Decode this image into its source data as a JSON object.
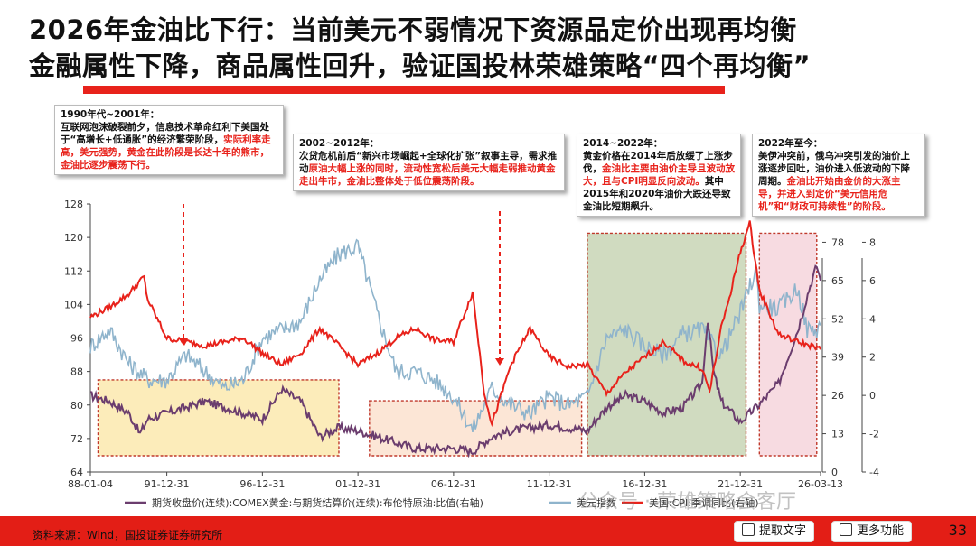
{
  "title_line1": "2026年金油比下行：当前美元不弱情况下资源品定价出现再均衡",
  "title_line2": "金融属性下降，商品属性回升，验证国投林荣雄策略“四个再均衡”",
  "notes": [
    {
      "head": "1990年代~2001年：",
      "segments": [
        {
          "t": "互联网泡沫破裂前夕，信息技术革命红利下美国处于“高增长+低通胀”的经济繁荣阶段，",
          "red": false
        },
        {
          "t": "实际利率走高，美元强势，黄金在此阶段是长达十年的熊市，金油比逐步震荡下行。",
          "red": true
        }
      ]
    },
    {
      "head": "2002~2012年：",
      "segments": [
        {
          "t": "次贷危机前后“新兴市场崛起+全球化扩张”叙事主导，需求推动",
          "red": false
        },
        {
          "t": "原油大幅上涨的同时，流动性宽松后美元大幅走弱推动黄金走出牛市，金油比整体处于低位震荡阶段。",
          "red": true
        }
      ]
    },
    {
      "head": "2014~2022年：",
      "segments": [
        {
          "t": "黄金价格在2014年后放缓了上涨步伐，",
          "red": false
        },
        {
          "t": "金油比主要由油价主导且波动放大，且与CPI明显反向波动。",
          "red": true
        },
        {
          "t": "其中2015年和2020年油价大跌还导致金油比短期飙升。",
          "red": false
        }
      ]
    },
    {
      "head": "2022年至今：",
      "segments": [
        {
          "t": "美伊冲突前，俄乌冲突引发的油价上涨逐步回吐，油价进入低波动的下降周期。",
          "red": false
        },
        {
          "t": "金油比开始由金价的大涨主导，并进入到定价“美元信用危机”和“财政可持续性”的阶段。",
          "red": true
        }
      ]
    }
  ],
  "chart_data": {
    "type": "line",
    "x_ticks": [
      "88-01-04",
      "91-12-31",
      "96-12-31",
      "01-12-31",
      "06-12-31",
      "11-12-31",
      "16-12-31",
      "21-12-31",
      "26-03-13"
    ],
    "left_axis": {
      "range": [
        64,
        128
      ],
      "ticks": [
        64,
        72,
        80,
        88,
        96,
        104,
        112,
        120,
        128
      ]
    },
    "right_axis_1": {
      "range": [
        0,
        91
      ],
      "ticks": [
        0,
        13,
        26,
        39,
        52,
        65,
        78
      ]
    },
    "right_axis_2": {
      "range": [
        -4,
        10
      ],
      "ticks": [
        -4,
        -2,
        0,
        2,
        4,
        6,
        8
      ]
    },
    "series": [
      {
        "name": "期货收盘价(连续):COMEX黄金:与期货结算价(连续):布伦特原油:比值(右轴)",
        "color": "#6b3d6e",
        "axis": "right_axis_1",
        "points": [
          [
            1988.0,
            26
          ],
          [
            1989.0,
            24
          ],
          [
            1990.0,
            20
          ],
          [
            1990.6,
            13
          ],
          [
            1991.0,
            18
          ],
          [
            1992.0,
            20
          ],
          [
            1993.0,
            22
          ],
          [
            1994.0,
            24
          ],
          [
            1995.0,
            22
          ],
          [
            1996.0,
            20
          ],
          [
            1997.0,
            18
          ],
          [
            1998.0,
            28
          ],
          [
            1999.0,
            24
          ],
          [
            2000.0,
            12
          ],
          [
            2001.0,
            15
          ],
          [
            2002.0,
            14
          ],
          [
            2003.0,
            12
          ],
          [
            2004.0,
            10
          ],
          [
            2005.0,
            8
          ],
          [
            2006.0,
            8
          ],
          [
            2007.0,
            8
          ],
          [
            2008.0,
            7
          ],
          [
            2009.0,
            12
          ],
          [
            2010.0,
            14
          ],
          [
            2011.0,
            15
          ],
          [
            2012.0,
            16
          ],
          [
            2013.0,
            15
          ],
          [
            2014.0,
            14
          ],
          [
            2015.0,
            22
          ],
          [
            2016.0,
            26
          ],
          [
            2017.0,
            24
          ],
          [
            2018.0,
            20
          ],
          [
            2019.0,
            22
          ],
          [
            2020.0,
            30
          ],
          [
            2020.3,
            52
          ],
          [
            2020.6,
            34
          ],
          [
            2021.0,
            24
          ],
          [
            2022.0,
            17
          ],
          [
            2023.0,
            23
          ],
          [
            2024.0,
            30
          ],
          [
            2025.0,
            48
          ],
          [
            2025.6,
            62
          ],
          [
            2026.0,
            70
          ],
          [
            2026.2,
            65
          ]
        ]
      },
      {
        "name": "美元指数",
        "color": "#8fb4cc",
        "axis": "left_axis",
        "points": [
          [
            1988.0,
            94
          ],
          [
            1989.0,
            98
          ],
          [
            1990.0,
            90
          ],
          [
            1991.0,
            86
          ],
          [
            1992.0,
            86
          ],
          [
            1993.0,
            92
          ],
          [
            1994.0,
            88
          ],
          [
            1995.0,
            84
          ],
          [
            1996.0,
            86
          ],
          [
            1997.0,
            96
          ],
          [
            1998.0,
            98
          ],
          [
            1999.0,
            100
          ],
          [
            2000.0,
            110
          ],
          [
            2001.0,
            116
          ],
          [
            2002.0,
            118
          ],
          [
            2003.0,
            102
          ],
          [
            2004.0,
            88
          ],
          [
            2005.0,
            88
          ],
          [
            2006.0,
            86
          ],
          [
            2007.0,
            82
          ],
          [
            2008.0,
            74
          ],
          [
            2009.0,
            84
          ],
          [
            2010.0,
            80
          ],
          [
            2011.0,
            78
          ],
          [
            2012.0,
            82
          ],
          [
            2013.0,
            80
          ],
          [
            2014.0,
            82
          ],
          [
            2015.0,
            96
          ],
          [
            2016.0,
            98
          ],
          [
            2017.0,
            94
          ],
          [
            2018.0,
            92
          ],
          [
            2019.0,
            97
          ],
          [
            2020.0,
            98
          ],
          [
            2021.0,
            92
          ],
          [
            2022.0,
            102
          ],
          [
            2022.8,
            112
          ],
          [
            2023.0,
            104
          ],
          [
            2024.0,
            103
          ],
          [
            2025.0,
            108
          ],
          [
            2025.5,
            98
          ],
          [
            2026.0,
            98
          ],
          [
            2026.2,
            99
          ]
        ]
      },
      {
        "name": "美国:CPI:季调同比(右轴)",
        "color": "#e8221b",
        "axis": "right_axis_2",
        "points": [
          [
            1988.0,
            4.1
          ],
          [
            1989.0,
            4.6
          ],
          [
            1990.0,
            5.3
          ],
          [
            1990.8,
            6.2
          ],
          [
            1991.0,
            5.0
          ],
          [
            1992.0,
            3.0
          ],
          [
            1993.0,
            2.8
          ],
          [
            1994.0,
            2.6
          ],
          [
            1995.0,
            2.8
          ],
          [
            1996.0,
            3.0
          ],
          [
            1997.0,
            2.2
          ],
          [
            1998.0,
            1.6
          ],
          [
            1999.0,
            2.2
          ],
          [
            2000.0,
            3.5
          ],
          [
            2001.0,
            2.6
          ],
          [
            2002.0,
            1.6
          ],
          [
            2003.0,
            2.2
          ],
          [
            2004.0,
            3.0
          ],
          [
            2005.0,
            3.5
          ],
          [
            2006.0,
            2.9
          ],
          [
            2007.0,
            2.8
          ],
          [
            2008.0,
            5.4
          ],
          [
            2008.6,
            0.2
          ],
          [
            2009.0,
            -1.5
          ],
          [
            2010.0,
            1.6
          ],
          [
            2011.0,
            3.5
          ],
          [
            2012.0,
            2.0
          ],
          [
            2013.0,
            1.5
          ],
          [
            2014.0,
            1.6
          ],
          [
            2015.0,
            0.1
          ],
          [
            2016.0,
            1.2
          ],
          [
            2017.0,
            2.0
          ],
          [
            2018.0,
            2.8
          ],
          [
            2019.0,
            1.8
          ],
          [
            2020.0,
            1.4
          ],
          [
            2020.4,
            0.2
          ],
          [
            2021.0,
            3.5
          ],
          [
            2021.5,
            5.4
          ],
          [
            2022.0,
            7.5
          ],
          [
            2022.5,
            9.0
          ],
          [
            2023.0,
            5.5
          ],
          [
            2024.0,
            3.2
          ],
          [
            2025.0,
            2.8
          ],
          [
            2026.0,
            2.5
          ],
          [
            2026.2,
            2.4
          ]
        ]
      }
    ]
  },
  "source": "资料来源：Wind，国投证券证券研究所",
  "page_number": "33",
  "buttons": {
    "extract": "提取文字",
    "more": "更多功能"
  },
  "watermark": "公众号 · 荣雄策略会客厅"
}
